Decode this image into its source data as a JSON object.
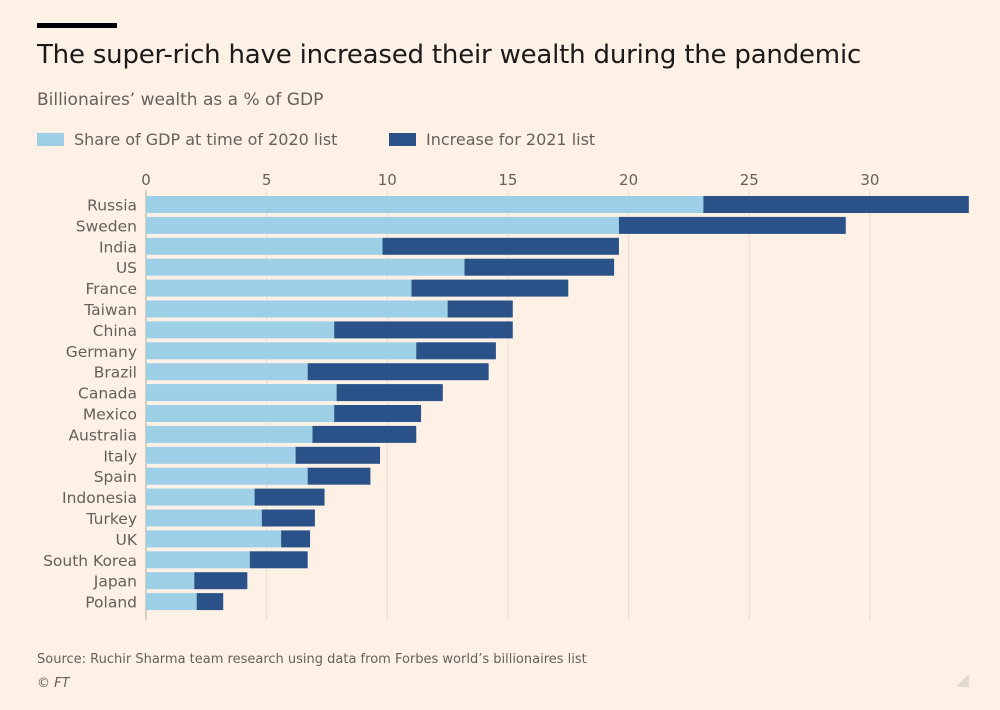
{
  "header": {
    "title": "The super-rich have increased their wealth during the pandemic",
    "subtitle": "Billionaires’ wealth as a % of GDP"
  },
  "legend": [
    {
      "label": "Share of GDP at time of 2020 list",
      "color": "#9dcfe6"
    },
    {
      "label": "Increase for 2021 list",
      "color": "#2a5289"
    }
  ],
  "footer": {
    "source": "Source: Ruchir Sharma team research using data from Forbes world’s billionaires list",
    "copyright": "© FT"
  },
  "chart_data": {
    "type": "bar",
    "orientation": "horizontal",
    "stacked": true,
    "title": "The super-rich have increased their wealth during the pandemic",
    "subtitle": "Billionaires’ wealth as a % of GDP",
    "xlabel": "",
    "ylabel": "",
    "xlim": [
      0,
      34.5
    ],
    "xticks": [
      0,
      5,
      10,
      15,
      20,
      25,
      30
    ],
    "tick_labels": [
      "0",
      "5",
      "10",
      "15",
      "20",
      "25",
      "30"
    ],
    "grid": true,
    "legend_position": "top-left",
    "categories": [
      "Russia",
      "Sweden",
      "India",
      "US",
      "France",
      "Taiwan",
      "China",
      "Germany",
      "Brazil",
      "Canada",
      "Mexico",
      "Australia",
      "Italy",
      "Spain",
      "Indonesia",
      "Turkey",
      "UK",
      "South Korea",
      "Japan",
      "Poland"
    ],
    "series": [
      {
        "name": "Share of GDP at time of 2020 list",
        "color": "#9dcfe6",
        "values": [
          23.1,
          19.6,
          9.8,
          13.2,
          11.0,
          12.5,
          7.8,
          11.2,
          6.7,
          7.9,
          7.8,
          6.9,
          6.2,
          6.7,
          4.5,
          4.8,
          5.6,
          4.3,
          2.0,
          2.1
        ]
      },
      {
        "name": "Increase for 2021 list",
        "color": "#2a5289",
        "values": [
          11.0,
          9.4,
          9.8,
          6.2,
          6.5,
          2.7,
          7.4,
          3.3,
          7.5,
          4.4,
          3.6,
          4.3,
          3.5,
          2.6,
          2.9,
          2.2,
          1.2,
          2.4,
          2.2,
          1.1
        ]
      }
    ]
  }
}
